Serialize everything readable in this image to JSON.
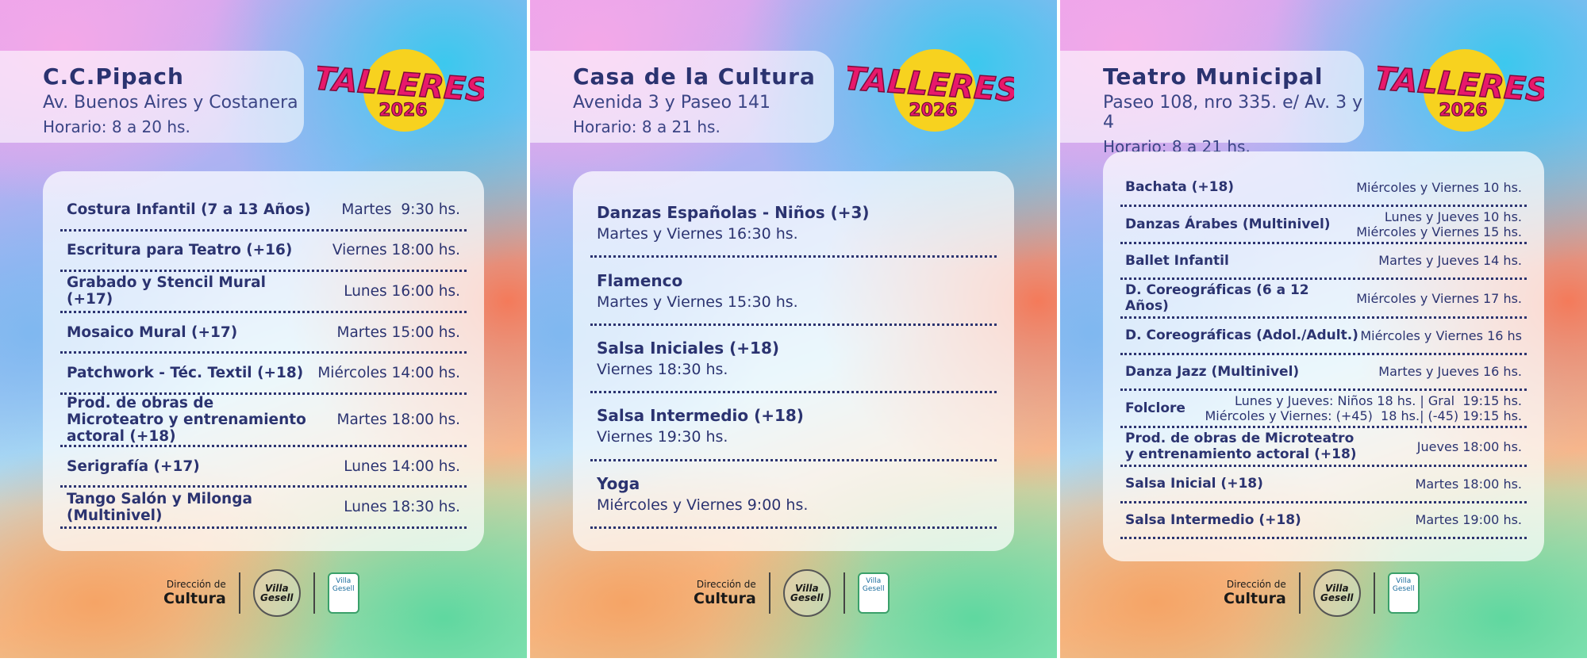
{
  "badge": {
    "word": "TALLERES",
    "year": "2026"
  },
  "footer": {
    "dept_top": "Dirección de",
    "dept_bottom": "Cultura",
    "logo_round": "Villa Gesell",
    "logo_shield_top": "Villa",
    "logo_shield_bottom": "Gesell"
  },
  "panels": [
    {
      "title": "C.C.Pipach",
      "address": "Av. Buenos Aires y Costanera",
      "hours": "Horario: 8 a 20 hs.",
      "workshops": [
        {
          "name": "Costura Infantil (7 a 13 Años)",
          "schedule": [
            "Martes  9:30 hs."
          ]
        },
        {
          "name": "Escritura para Teatro (+16)",
          "schedule": [
            "Viernes 18:00 hs."
          ]
        },
        {
          "name": "Grabado y Stencil Mural (+17)",
          "schedule": [
            "Lunes 16:00 hs."
          ]
        },
        {
          "name": "Mosaico Mural (+17)",
          "schedule": [
            "Martes 15:00 hs."
          ]
        },
        {
          "name": "Patchwork - Téc. Textil (+18)",
          "schedule": [
            "Miércoles 14:00 hs."
          ]
        },
        {
          "name": "Prod. de obras de Microteatro y entrenamiento actoral (+18)",
          "schedule": [
            "Martes 18:00 hs."
          ]
        },
        {
          "name": "Serigrafía (+17)",
          "schedule": [
            "Lunes 14:00 hs."
          ]
        },
        {
          "name": "Tango Salón y Milonga (Multinivel)",
          "schedule": [
            "Lunes 18:30 hs."
          ]
        }
      ]
    },
    {
      "title": "Casa de la Cultura",
      "address": "Avenida 3 y Paseo 141",
      "hours": "Horario: 8 a 21 hs.",
      "workshops": [
        {
          "name": "Danzas Españolas - Niños (+3)",
          "schedule": [
            "Martes y Viernes 16:30 hs."
          ]
        },
        {
          "name": "Flamenco",
          "schedule": [
            "Martes y Viernes 15:30 hs."
          ]
        },
        {
          "name": "Salsa Iniciales (+18)",
          "schedule": [
            "Viernes 18:30 hs."
          ]
        },
        {
          "name": "Salsa Intermedio (+18)",
          "schedule": [
            "Viernes 19:30 hs."
          ]
        },
        {
          "name": "Yoga",
          "schedule": [
            "Miércoles y Viernes 9:00 hs."
          ]
        }
      ]
    },
    {
      "title": "Teatro Municipal",
      "address": "Paseo 108, nro 335. e/ Av. 3 y 4",
      "hours": "Horario: 8 a 21 hs.",
      "workshops": [
        {
          "name": "Bachata (+18)",
          "schedule": [
            "Miércoles y Viernes 10 hs."
          ]
        },
        {
          "name": "Danzas Árabes (Multinivel)",
          "schedule": [
            "Lunes y Jueves 10 hs.",
            "Miércoles y Viernes 15 hs."
          ]
        },
        {
          "name": "Ballet Infantil",
          "schedule": [
            "Martes y Jueves 14 hs."
          ]
        },
        {
          "name": "D. Coreográficas (6 a 12 Años)",
          "schedule": [
            "Miércoles y Viernes 17 hs."
          ]
        },
        {
          "name": "D. Coreográficas (Adol./Adult.)",
          "schedule": [
            "Miércoles y Viernes 16 hs"
          ]
        },
        {
          "name": "Danza Jazz (Multinivel)",
          "schedule": [
            "Martes y Jueves 16 hs."
          ]
        },
        {
          "name": "Folclore",
          "schedule": [
            "Lunes y Jueves: Niños 18 hs. | Gral  19:15 hs.",
            "Miércoles y Viernes: (+45)  18 hs.| (-45) 19:15 hs."
          ]
        },
        {
          "name": "Prod. de obras de Microteatro y entrenamiento actoral (+18)",
          "schedule": [
            "Jueves 18:00 hs."
          ]
        },
        {
          "name": "Salsa Inicial (+18)",
          "schedule": [
            "Martes 18:00 hs."
          ]
        },
        {
          "name": "Salsa Intermedio (+18)",
          "schedule": [
            "Martes 19:00 hs."
          ]
        }
      ]
    }
  ]
}
